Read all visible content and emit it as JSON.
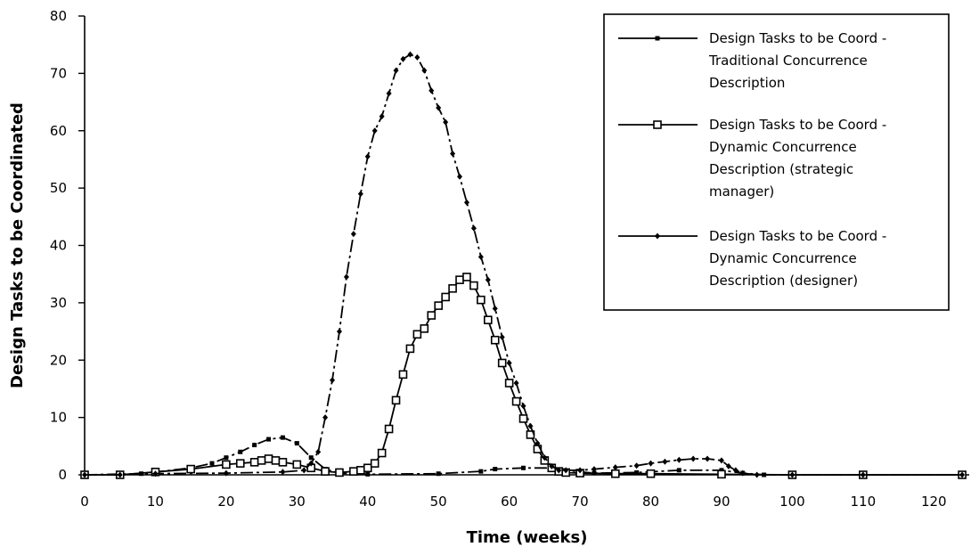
{
  "chart_data": {
    "type": "line",
    "title": "",
    "xlabel": "Time (weeks)",
    "ylabel": "Design Tasks to be Coordinated",
    "xlim": [
      0,
      125
    ],
    "ylim": [
      0,
      80
    ],
    "xticks": [
      0,
      10,
      20,
      30,
      40,
      50,
      60,
      70,
      80,
      90,
      100,
      110,
      120
    ],
    "yticks": [
      0,
      10,
      20,
      30,
      40,
      50,
      60,
      70,
      80
    ],
    "grid": false,
    "legend_position": "top-right",
    "series": [
      {
        "name": "Design Tasks to be Coord - Traditional Concurrence Description",
        "legend_lines": [
          "Design Tasks to be Coord -",
          "Traditional Concurrence",
          "Description"
        ],
        "marker": "small-square",
        "color": "#000000",
        "points": [
          [
            0,
            0
          ],
          [
            8,
            0.2
          ],
          [
            15,
            1.2
          ],
          [
            18,
            2
          ],
          [
            20,
            3
          ],
          [
            22,
            4
          ],
          [
            24,
            5.2
          ],
          [
            26,
            6.2
          ],
          [
            28,
            6.5
          ],
          [
            30,
            5.5
          ],
          [
            32,
            3
          ],
          [
            34,
            1
          ],
          [
            36,
            0.3
          ],
          [
            40,
            0.1
          ],
          [
            50,
            0.2
          ],
          [
            56,
            0.6
          ],
          [
            58,
            1
          ],
          [
            62,
            1.2
          ],
          [
            66,
            1.2
          ],
          [
            70,
            0.5
          ],
          [
            72,
            0.3
          ],
          [
            78,
            0.4
          ],
          [
            84,
            0.8
          ],
          [
            90,
            0.8
          ],
          [
            93,
            0.3
          ],
          [
            96,
            0
          ],
          [
            100,
            0
          ],
          [
            110,
            0
          ],
          [
            124,
            0
          ]
        ]
      },
      {
        "name": "Design Tasks to be Coord - Dynamic Concurrence Description (strategic manager)",
        "legend_lines": [
          "Design Tasks to be Coord -",
          "Dynamic Concurrence",
          "Description (strategic",
          "manager)"
        ],
        "marker": "open-square",
        "color": "#000000",
        "points": [
          [
            0,
            0
          ],
          [
            5,
            0
          ],
          [
            10,
            0.5
          ],
          [
            15,
            1
          ],
          [
            20,
            1.8
          ],
          [
            22,
            2
          ],
          [
            24,
            2.2
          ],
          [
            25,
            2.5
          ],
          [
            26,
            2.8
          ],
          [
            27,
            2.5
          ],
          [
            28,
            2.2
          ],
          [
            30,
            1.8
          ],
          [
            32,
            1.2
          ],
          [
            34,
            0.6
          ],
          [
            36,
            0.4
          ],
          [
            38,
            0.6
          ],
          [
            39,
            0.8
          ],
          [
            40,
            1.2
          ],
          [
            41,
            2
          ],
          [
            42,
            3.8
          ],
          [
            43,
            8
          ],
          [
            44,
            13
          ],
          [
            45,
            17.5
          ],
          [
            46,
            22
          ],
          [
            47,
            24.5
          ],
          [
            48,
            25.5
          ],
          [
            49,
            27.8
          ],
          [
            50,
            29.5
          ],
          [
            51,
            31
          ],
          [
            52,
            32.5
          ],
          [
            53,
            34
          ],
          [
            54,
            34.5
          ],
          [
            55,
            33
          ],
          [
            56,
            30.5
          ],
          [
            57,
            27
          ],
          [
            58,
            23.5
          ],
          [
            59,
            19.5
          ],
          [
            60,
            16
          ],
          [
            61,
            12.8
          ],
          [
            62,
            9.8
          ],
          [
            63,
            7
          ],
          [
            64,
            4.5
          ],
          [
            65,
            2.5
          ],
          [
            66,
            1.2
          ],
          [
            67,
            0.6
          ],
          [
            68,
            0.4
          ],
          [
            70,
            0.3
          ],
          [
            75,
            0.2
          ],
          [
            80,
            0.2
          ],
          [
            90,
            0.1
          ],
          [
            100,
            0
          ],
          [
            110,
            0
          ],
          [
            124,
            0
          ]
        ]
      },
      {
        "name": "Design Tasks to be Coord - Dynamic Concurrence Description (designer)",
        "legend_lines": [
          "Design Tasks to be Coord -",
          "Dynamic Concurrence",
          "Description (designer)"
        ],
        "marker": "small-diamond",
        "color": "#000000",
        "points": [
          [
            0,
            0
          ],
          [
            5,
            0
          ],
          [
            10,
            0.2
          ],
          [
            20,
            0.3
          ],
          [
            28,
            0.5
          ],
          [
            31,
            0.8
          ],
          [
            32,
            2
          ],
          [
            33,
            4
          ],
          [
            34,
            10
          ],
          [
            35,
            16.5
          ],
          [
            36,
            25
          ],
          [
            37,
            34.5
          ],
          [
            38,
            42
          ],
          [
            39,
            49
          ],
          [
            40,
            55.5
          ],
          [
            41,
            60
          ],
          [
            42,
            62.5
          ],
          [
            43,
            66.5
          ],
          [
            44,
            70.5
          ],
          [
            45,
            72.5
          ],
          [
            46,
            73.3
          ],
          [
            47,
            72.8
          ],
          [
            48,
            70.5
          ],
          [
            49,
            67
          ],
          [
            50,
            64
          ],
          [
            51,
            61.5
          ],
          [
            52,
            56
          ],
          [
            53,
            52
          ],
          [
            54,
            47.5
          ],
          [
            55,
            43
          ],
          [
            56,
            38
          ],
          [
            57,
            34
          ],
          [
            58,
            29
          ],
          [
            59,
            24
          ],
          [
            60,
            19.5
          ],
          [
            61,
            16
          ],
          [
            62,
            12
          ],
          [
            63,
            8.5
          ],
          [
            64,
            5.5
          ],
          [
            65,
            3
          ],
          [
            66,
            1.5
          ],
          [
            67,
            0.8
          ],
          [
            68,
            0.8
          ],
          [
            70,
            0.8
          ],
          [
            72,
            1
          ],
          [
            75,
            1.3
          ],
          [
            78,
            1.6
          ],
          [
            80,
            2
          ],
          [
            82,
            2.3
          ],
          [
            84,
            2.6
          ],
          [
            86,
            2.8
          ],
          [
            88,
            2.8
          ],
          [
            90,
            2.5
          ],
          [
            91,
            1.5
          ],
          [
            92,
            0.8
          ],
          [
            93,
            0.3
          ],
          [
            95,
            0
          ],
          [
            100,
            0
          ],
          [
            110,
            0
          ],
          [
            124,
            0
          ]
        ]
      }
    ]
  }
}
